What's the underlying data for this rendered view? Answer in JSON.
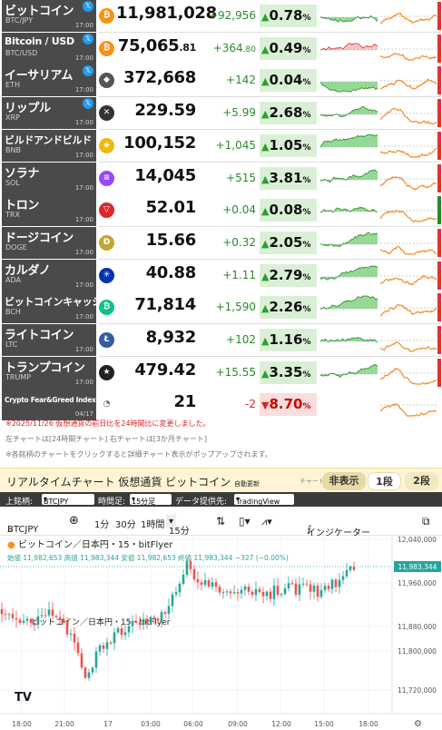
{
  "rows": [
    {
      "name": "ビットコイン",
      "ticker": "BTC/JPY",
      "x": true,
      "price": "11,981,028",
      "price_dec": "",
      "change": "+92,956",
      "change_dec": "",
      "pct": "0.78",
      "icon": "₿",
      "icon_color": "#f7931a",
      "spark_a": "m",
      "spark_b": "u"
    },
    {
      "name": "Bitcoin / USD",
      "ticker": "BTC/USD",
      "x": true,
      "price": "75,065",
      "price_dec": ".81",
      "change": "+364",
      "change_dec": ".80",
      "pct": "0.49",
      "icon": "₿",
      "icon_color": "#f7931a",
      "spark_a": "r",
      "spark_b": "u"
    },
    {
      "name": "イーサリアム",
      "ticker": "ETH",
      "x": true,
      "price": "372,668",
      "price_dec": "",
      "change": "+142",
      "change_dec": "",
      "pct": "0.04",
      "icon": "◆",
      "icon_color": "#555",
      "spark_a": "m",
      "spark_b": "u"
    },
    {
      "name": "リップル",
      "ticker": "XRP",
      "x": true,
      "price": "229.59",
      "price_dec": "",
      "change": "+5.99",
      "change_dec": "",
      "pct": "2.68",
      "icon": "✕",
      "icon_color": "#333",
      "spark_a": "g",
      "spark_b": "u"
    },
    {
      "name": "ビルドアンドビルド",
      "ticker": "BNB",
      "x": false,
      "price": "100,152",
      "price_dec": "",
      "change": "+1,045",
      "change_dec": "",
      "pct": "1.05",
      "icon": "◈",
      "icon_color": "#f0b90b",
      "spark_a": "g",
      "spark_b": "u"
    },
    {
      "name": "ソラナ",
      "ticker": "SOL",
      "x": false,
      "price": "14,045",
      "price_dec": "",
      "change": "+515",
      "change_dec": "",
      "pct": "3.81",
      "icon": "≡",
      "icon_color": "#9945ff",
      "spark_a": "g",
      "spark_b": "u"
    },
    {
      "name": "トロン",
      "ticker": "TRX",
      "x": false,
      "price": "52.01",
      "price_dec": "",
      "change": "+0.04",
      "change_dec": "",
      "pct": "0.08",
      "icon": "▽",
      "icon_color": "#e0252b",
      "spark_a": "m",
      "spark_b": "u"
    },
    {
      "name": "ドージコイン",
      "ticker": "DOGE",
      "x": false,
      "price": "15.66",
      "price_dec": "",
      "change": "+0.32",
      "change_dec": "",
      "pct": "2.05",
      "icon": "Ð",
      "icon_color": "#c2a633",
      "spark_a": "g",
      "spark_b": "u"
    },
    {
      "name": "カルダノ",
      "ticker": "ADA",
      "x": false,
      "price": "40.88",
      "price_dec": "",
      "change": "+1.11",
      "change_dec": "",
      "pct": "2.79",
      "icon": "✳",
      "icon_color": "#0033ad",
      "spark_a": "g",
      "spark_b": "u"
    },
    {
      "name": "ビットコインキャッシュ",
      "ticker": "BCH",
      "x": false,
      "price": "71,814",
      "price_dec": "",
      "change": "+1,590",
      "change_dec": "",
      "pct": "2.26",
      "icon": "₿",
      "icon_color": "#0ac18e",
      "spark_a": "g",
      "spark_b": "u"
    },
    {
      "name": "ライトコイン",
      "ticker": "LTC",
      "x": false,
      "price": "8,932",
      "price_dec": "",
      "change": "+102",
      "change_dec": "",
      "pct": "1.16",
      "icon": "Ł",
      "icon_color": "#345d9d",
      "spark_a": "g",
      "spark_b": "u"
    },
    {
      "name": "トランプコイン",
      "ticker": "TRUMP",
      "x": false,
      "price": "479.42",
      "price_dec": "",
      "change": "+15.55",
      "change_dec": "",
      "pct": "3.35",
      "icon": "★",
      "icon_color": "#222",
      "spark_a": "g",
      "spark_b": "u"
    }
  ],
  "row_time": "17:00",
  "feargreed": {
    "name": "Crypto Fear&Greed Index",
    "date": "04/17",
    "value": "21",
    "change": "-2",
    "pct": "8.70"
  },
  "notes": {
    "n1": "※2025/11/26 仮想通貨の前日比を24時間比に変更しました。",
    "n2": "左チャートは[24時間チャート] 右チャートは[3か月チャート]",
    "n3": "※各銘柄のチャートをクリックすると詳細チャート表示がポップアップされます。"
  },
  "chart_header": {
    "title": "リアルタイムチャート 仮想通貨 ビットコイン",
    "auto": "自動更新",
    "chart_label": "チャート:",
    "hide": "非表示",
    "one": "1段",
    "two": "2段"
  },
  "controls": {
    "symbol_label": "上銘柄:",
    "symbol": "BTCJPY",
    "timeframe_label": "時間足:",
    "timeframe": "15分足",
    "provider_label": "データ提供先:",
    "provider": "TradingView"
  },
  "toolbar": {
    "symbol": "BTCJPY",
    "t1": "1分",
    "t2": "30分",
    "t3": "1時間",
    "t4": "15分",
    "indicator": "インジケーター"
  },
  "tv": {
    "title": "ビットコイン／日本円・15・bitFlyer",
    "ohlc": "始値 11,982,653 高値 11,983,344 安値 11,982,653 終値 11,983,344 −327 (−0.00%)",
    "watermark": "ビットコイン／日本円・15・bitFlyer",
    "last": "11,983,344",
    "yticks": [
      "12,040,000",
      "11,960,000",
      "11,880,000",
      "11,800,000",
      "11,720,000"
    ],
    "xticks": [
      "18:00",
      "21:00",
      "17",
      "03:00",
      "06:00",
      "09:00",
      "12:00",
      "15:00",
      "18:00"
    ]
  },
  "colors": {
    "up": "#26a69a",
    "down": "#ef5350",
    "green": "#2aa12a",
    "red": "#d22",
    "orange": "#f28c28",
    "panel": "#4a4a4a"
  }
}
